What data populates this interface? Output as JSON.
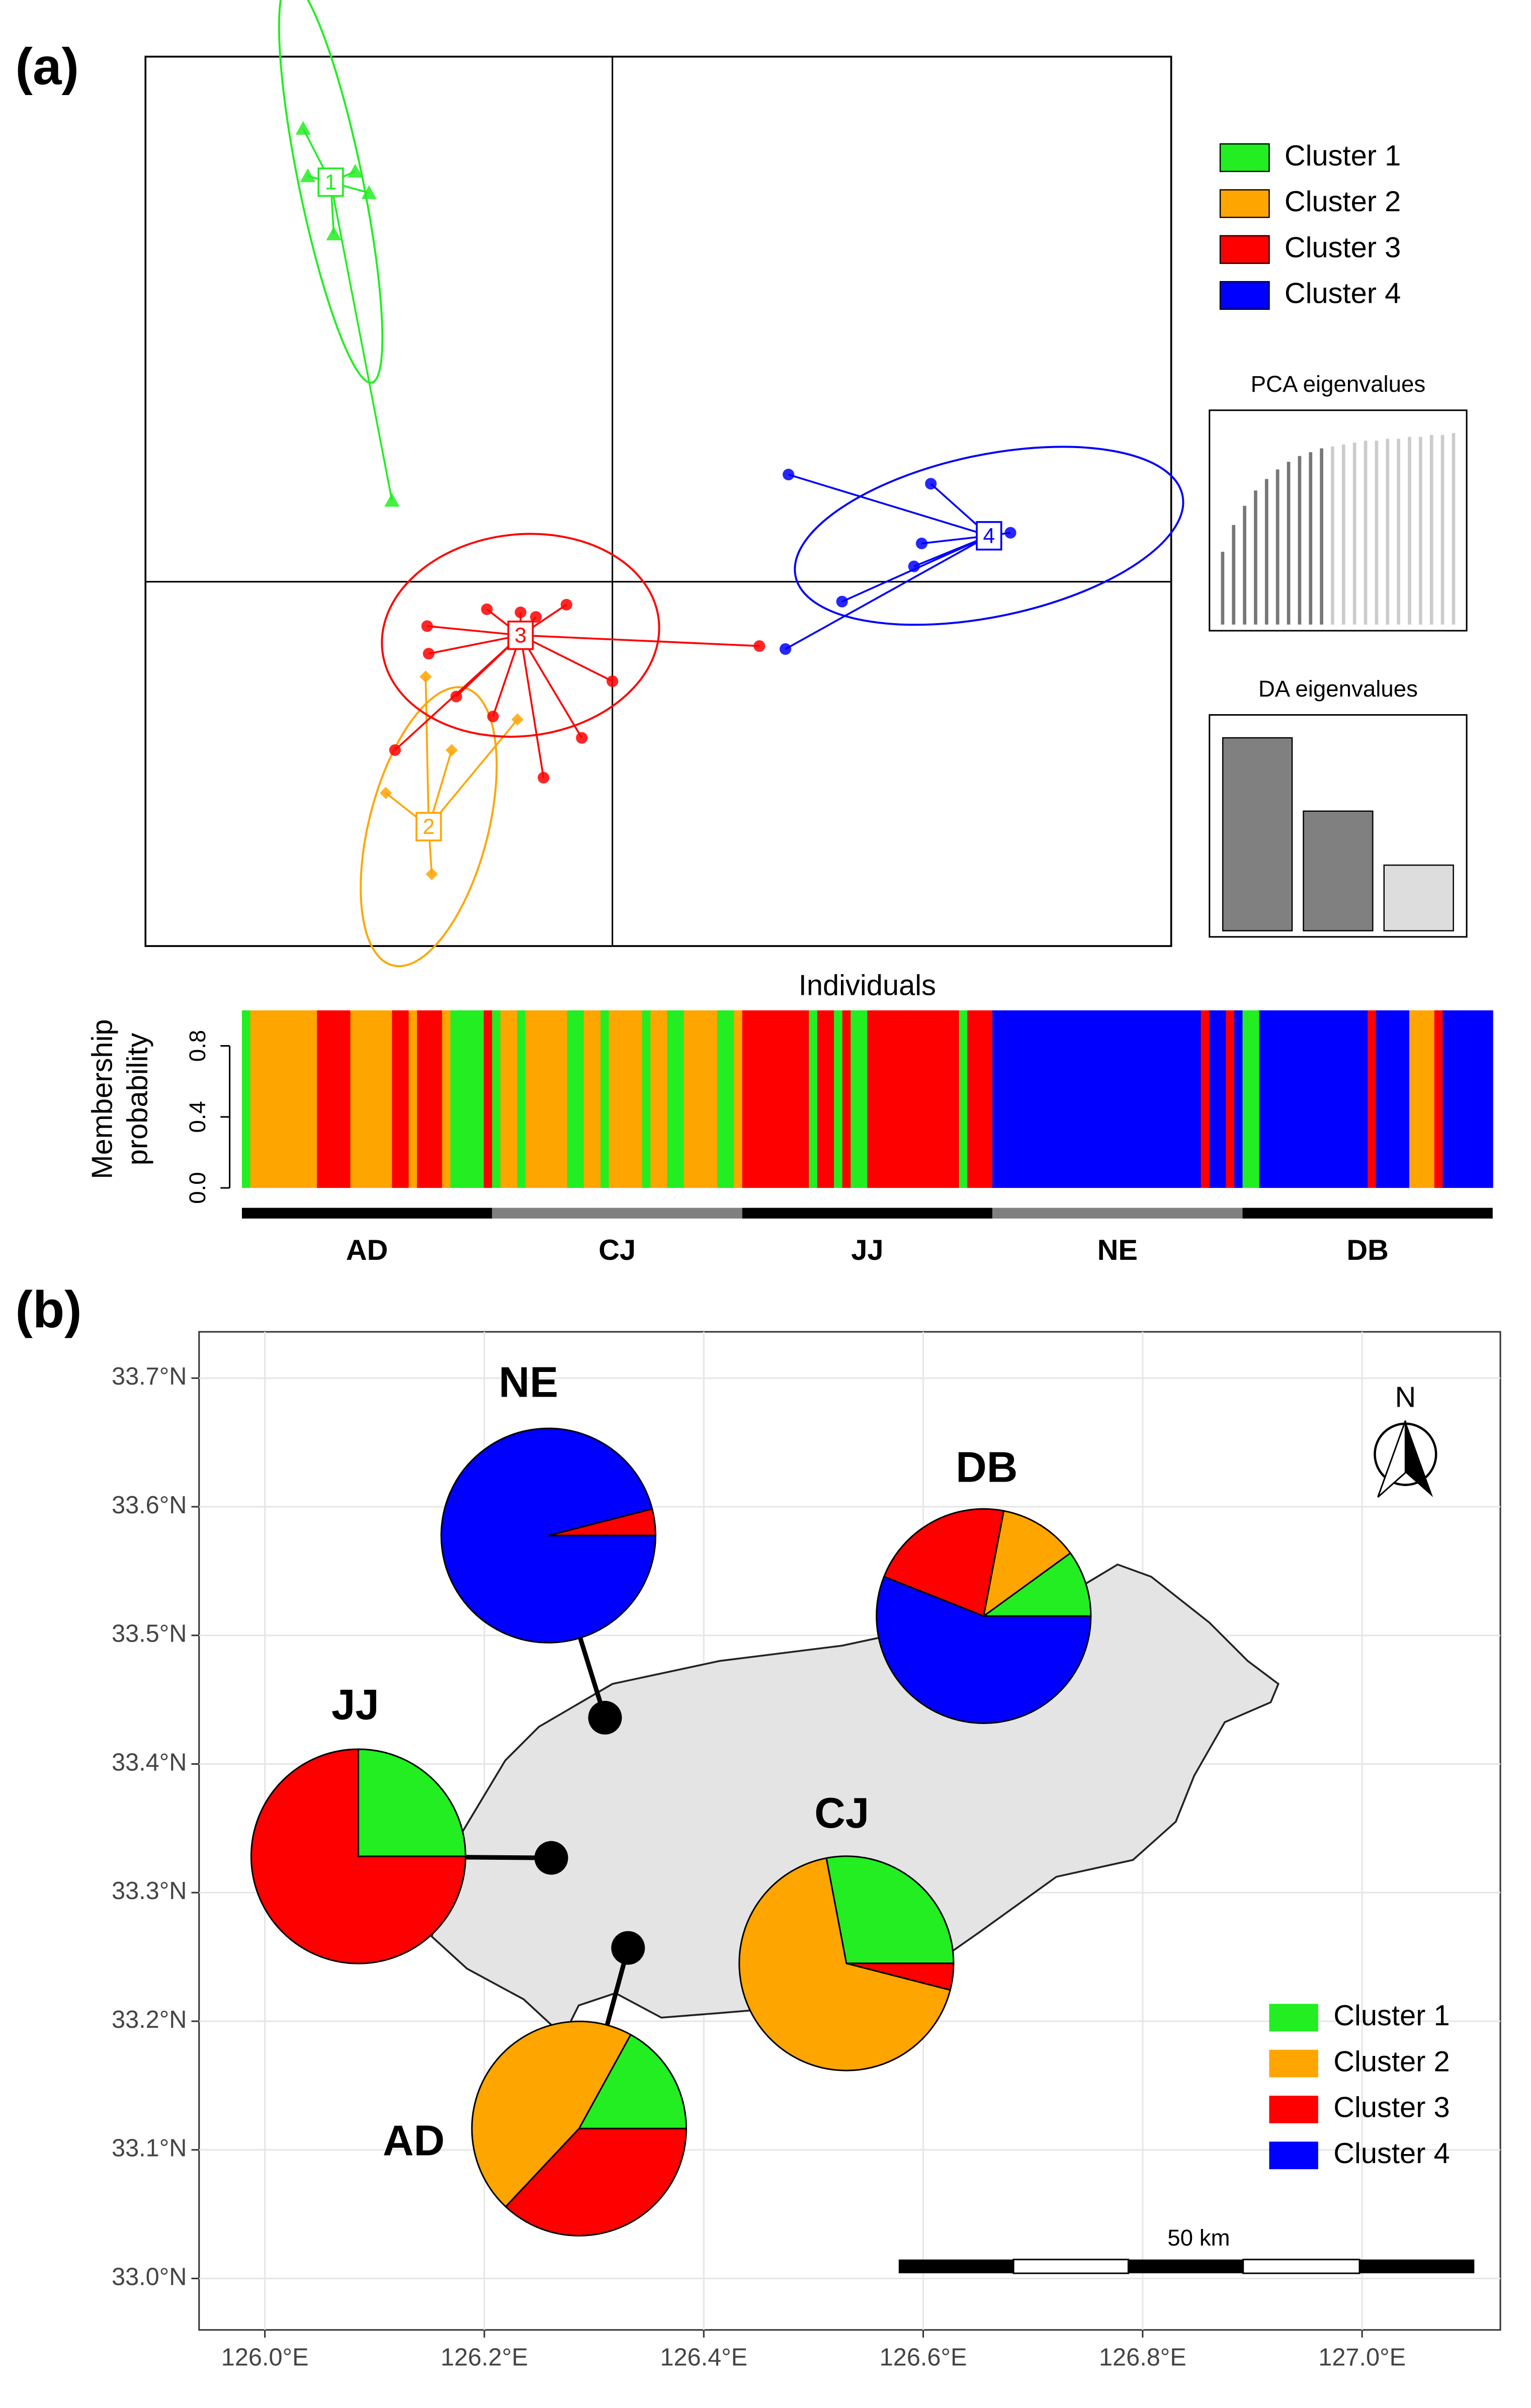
{
  "chart_data": [
    {
      "type": "scatter",
      "panel": "(a)",
      "xlim": [
        -3.05,
        3.65
      ],
      "ylim": [
        -2.38,
        3.43
      ],
      "series": [
        {
          "name": "Cluster 1",
          "color": "#22ee22",
          "marker": "triangle",
          "centroid_label": "1",
          "centroid": [
            -1.84,
            2.61
          ],
          "x": [
            -2.02,
            -1.99,
            -1.68,
            -1.59,
            -1.82,
            -1.44
          ],
          "y": [
            2.96,
            2.65,
            2.68,
            2.54,
            2.27,
            0.53
          ]
        },
        {
          "name": "Cluster 2",
          "color": "#ffa500",
          "marker": "diamond",
          "centroid_label": "2",
          "centroid": [
            -1.2,
            -1.6
          ],
          "x": [
            -1.48,
            -1.18,
            -0.62,
            -1.22,
            -1.05
          ],
          "y": [
            -1.38,
            -1.91,
            -0.9,
            -0.62,
            -1.1
          ]
        },
        {
          "name": "Cluster 3",
          "color": "#ff0000",
          "marker": "circle",
          "centroid_label": "3",
          "centroid": [
            -0.6,
            -0.35
          ],
          "x": [
            -1.21,
            -1.2,
            -0.82,
            -0.6,
            -0.5,
            -0.3,
            0,
            -0.2,
            -0.45,
            -0.78,
            -1.02,
            -1.42,
            0.96
          ],
          "y": [
            -0.29,
            -0.47,
            -0.18,
            -0.2,
            -0.23,
            -0.15,
            -0.65,
            -1.02,
            -1.28,
            -0.88,
            -0.75,
            -1.1,
            -0.42
          ]
        },
        {
          "name": "Cluster 4",
          "color": "#0000ff",
          "marker": "circle",
          "centroid_label": "4",
          "centroid": [
            2.46,
            0.3
          ],
          "x": [
            1.15,
            2.08,
            2.6,
            2.02,
            1.97,
            1.5,
            1.13
          ],
          "y": [
            0.7,
            0.64,
            0.32,
            0.25,
            0.1,
            -0.13,
            -0.44
          ]
        }
      ],
      "pca_eigenvalues": {
        "title": "PCA eigenvalues",
        "values": [
          0.38,
          0.52,
          0.62,
          0.7,
          0.76,
          0.81,
          0.85,
          0.88,
          0.9,
          0.92,
          0.93,
          0.94,
          0.95,
          0.96,
          0.96,
          0.97,
          0.97,
          0.98,
          0.98,
          0.99,
          0.99,
          1.0
        ],
        "colors": [
          "#777777",
          "#777777",
          "#777777",
          "#777777",
          "#777777",
          "#777777",
          "#777777",
          "#777777",
          "#777777",
          "#777777",
          "#cccccc",
          "#cccccc",
          "#cccccc",
          "#cccccc",
          "#cccccc",
          "#cccccc",
          "#cccccc",
          "#cccccc",
          "#cccccc",
          "#cccccc",
          "#cccccc",
          "#cccccc"
        ]
      },
      "da_eigenvalues": {
        "title": "DA eigenvalues",
        "values": [
          1.0,
          0.62,
          0.34
        ],
        "colors": [
          "#808080",
          "#808080",
          "#dddddd"
        ]
      }
    },
    {
      "type": "bar",
      "title": "Individuals",
      "ylabel": [
        "Membership",
        "probability"
      ],
      "ylim": [
        0,
        1
      ],
      "yticks": [
        {
          "value": 0,
          "label": "0.0"
        },
        0.4,
        0.8
      ],
      "colors": [
        "#22ee22",
        "#ffa500",
        "#ff0000",
        "#0000ff"
      ],
      "populations": [
        {
          "name": "AD",
          "clusters": [
            1,
            2,
            2,
            2,
            2,
            2,
            2,
            2,
            2,
            3,
            3,
            3,
            3,
            2,
            2,
            2,
            2,
            2,
            3,
            3,
            2,
            3,
            3,
            3,
            2,
            1,
            1,
            1,
            1,
            3
          ],
          "values": [
            1,
            1,
            1,
            1,
            1,
            1,
            1,
            1,
            1,
            1,
            1,
            1,
            1,
            1,
            1,
            1,
            1,
            1,
            1,
            1,
            1,
            1,
            1,
            1,
            1,
            1,
            1,
            1,
            1,
            1
          ]
        },
        {
          "name": "CJ",
          "clusters": [
            1,
            2,
            2,
            1,
            2,
            2,
            2,
            2,
            2,
            1,
            1,
            2,
            2,
            1,
            2,
            2,
            2,
            2,
            1,
            2,
            2,
            1,
            1,
            2,
            2,
            2,
            2,
            1,
            1,
            2
          ],
          "values": [
            1,
            1,
            1,
            1,
            1,
            1,
            1,
            1,
            1,
            1,
            1,
            1,
            1,
            1,
            1,
            1,
            1,
            1,
            1,
            1,
            1,
            1,
            1,
            1,
            1,
            1,
            1,
            1,
            1,
            1
          ]
        },
        {
          "name": "JJ",
          "clusters": [
            3,
            3,
            3,
            3,
            3,
            3,
            3,
            3,
            1,
            3,
            3,
            1,
            3,
            1,
            1,
            3,
            3,
            3,
            3,
            3,
            3,
            3,
            3,
            3,
            3,
            3,
            1,
            3,
            3,
            3
          ],
          "values": [
            1,
            1,
            1,
            1,
            1,
            1,
            1,
            1,
            1,
            1,
            1,
            1,
            1,
            1,
            1,
            1,
            1,
            1,
            1,
            1,
            1,
            1,
            1,
            1,
            1,
            1,
            1,
            1,
            1,
            1
          ]
        },
        {
          "name": "NE",
          "clusters": [
            4,
            4,
            4,
            4,
            4,
            4,
            4,
            4,
            4,
            4,
            4,
            4,
            4,
            4,
            4,
            4,
            4,
            4,
            4,
            4,
            4,
            4,
            4,
            4,
            4,
            3,
            4,
            4,
            3,
            4
          ],
          "values": [
            1,
            1,
            1,
            1,
            1,
            1,
            1,
            1,
            1,
            1,
            1,
            1,
            1,
            1,
            1,
            1,
            1,
            1,
            1,
            1,
            1,
            1,
            1,
            1,
            1,
            1,
            1,
            1,
            1,
            1
          ]
        },
        {
          "name": "DB",
          "clusters": [
            1,
            1,
            4,
            4,
            4,
            4,
            4,
            4,
            4,
            4,
            4,
            4,
            4,
            4,
            4,
            3,
            4,
            4,
            4,
            4,
            2,
            2,
            2,
            3,
            4,
            4,
            4,
            4,
            4,
            4
          ],
          "values": [
            1,
            1,
            1,
            1,
            1,
            1,
            1,
            1,
            1,
            1,
            1,
            1,
            1,
            1,
            1,
            1,
            1,
            1,
            1,
            1,
            1,
            1,
            1,
            1,
            1,
            1,
            1,
            1,
            1,
            1
          ]
        }
      ]
    },
    {
      "type": "pie-map",
      "panel": "(b)",
      "xlim": [
        125.94,
        127.126
      ],
      "ylim": [
        32.96,
        33.736
      ],
      "grid": true,
      "xticks": [
        {
          "value": 126.0,
          "label": "126.0°E"
        },
        {
          "value": 126.2,
          "label": "126.2°E"
        },
        {
          "value": 126.4,
          "label": "126.4°E"
        },
        {
          "value": 126.6,
          "label": "126.6°E"
        },
        {
          "value": 126.8,
          "label": "126.8°E"
        },
        {
          "value": 127.0,
          "label": "127.0°E"
        }
      ],
      "yticks": [
        {
          "value": 33.0,
          "label": "33.0°N"
        },
        {
          "value": 33.1,
          "label": "33.1°N"
        },
        {
          "value": 33.2,
          "label": "33.2°N"
        },
        {
          "value": 33.3,
          "label": "33.3°N"
        },
        {
          "value": 33.4,
          "label": "33.4°N"
        },
        {
          "value": 33.5,
          "label": "33.5°N"
        },
        {
          "value": 33.6,
          "label": "33.6°N"
        },
        {
          "value": 33.7,
          "label": "33.7°N"
        }
      ],
      "series": [
        {
          "name": "Cluster 1",
          "color": "#22ee22"
        },
        {
          "name": "Cluster 2",
          "color": "#ffa500"
        },
        {
          "name": "Cluster 3",
          "color": "#ff0000"
        },
        {
          "name": "Cluster 4",
          "color": "#0000ff"
        }
      ],
      "sites": [
        {
          "name": "NE",
          "lon": 126.31,
          "lat": 33.436,
          "values": [
            0,
            0,
            4,
            96
          ]
        },
        {
          "name": "JJ",
          "lon": 126.261,
          "lat": 33.327,
          "values": [
            25,
            0,
            75,
            0
          ]
        },
        {
          "name": "AD",
          "lon": 126.331,
          "lat": 33.257,
          "values": [
            17,
            46,
            37,
            0
          ]
        },
        {
          "name": "CJ",
          "lon": 126.53,
          "lat": 33.245,
          "values": [
            28,
            68,
            4,
            0
          ]
        },
        {
          "name": "DB",
          "lon": 126.683,
          "lat": 33.515,
          "values": [
            10,
            12,
            22,
            56
          ]
        }
      ],
      "scale_label": "50 km",
      "north": "N"
    }
  ]
}
